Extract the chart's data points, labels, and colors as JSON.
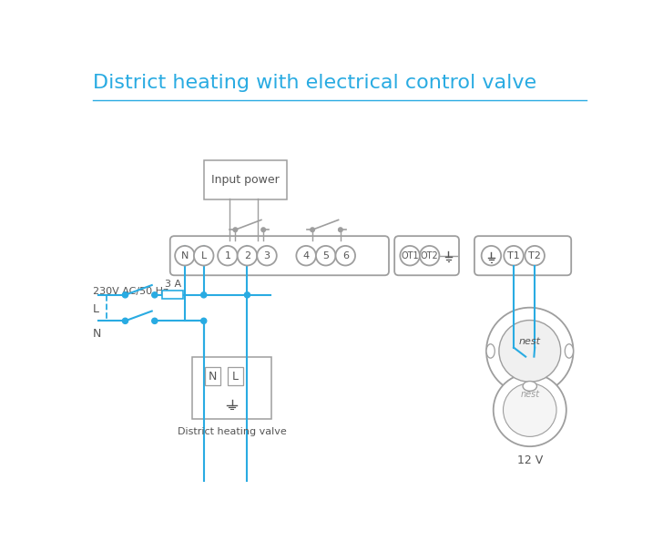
{
  "title": "District heating with electrical control valve",
  "title_color": "#29abe2",
  "title_fontsize": 16,
  "bg_color": "#ffffff",
  "line_color": "#29abe2",
  "component_color": "#9e9e9e",
  "text_color": "#555555",
  "terminal_labels": [
    "N",
    "L",
    "1",
    "2",
    "3",
    "4",
    "5",
    "6"
  ],
  "ot_labels": [
    "OT1",
    "OT2"
  ],
  "extra_labels": [
    "T1",
    "T2"
  ],
  "left_label1": "230V AC/50 Hz",
  "left_label2": "L",
  "left_label3": "N",
  "fuse_label": "3 A",
  "bottom_label1": "District heating valve",
  "bottom_label2": "12 V",
  "input_power_label": "Input power"
}
